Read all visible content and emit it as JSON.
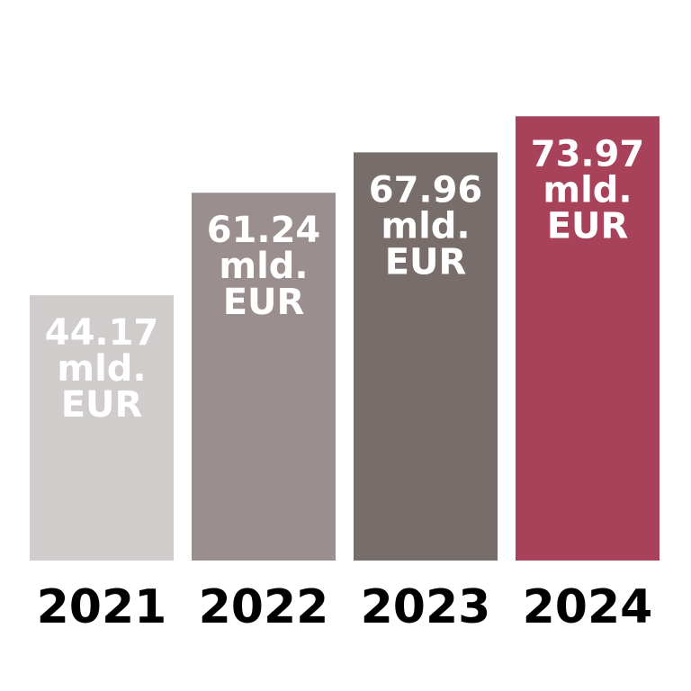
{
  "chart_data": {
    "type": "bar",
    "categories": [
      "2021",
      "2022",
      "2023",
      "2024"
    ],
    "values": [
      44.17,
      61.24,
      67.96,
      73.97
    ],
    "value_labels": [
      "44.17 mld. EUR",
      "61.24 mld. EUR",
      "67.96 mld. EUR",
      "73.97 mld. EUR"
    ],
    "colors": [
      "#d0cccc",
      "#9a8f8e",
      "#776e6c",
      "#a8425b"
    ],
    "ylim": [
      0,
      80
    ]
  }
}
